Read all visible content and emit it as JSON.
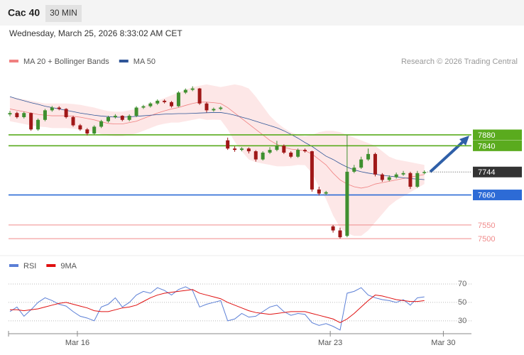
{
  "header": {
    "title": "Cac 40",
    "interval": "30 MIN",
    "timestamp": "Wednesday, March 25, 2026 8:33:02 AM CET"
  },
  "chart_data": [
    {
      "type": "candlestick",
      "legend": [
        {
          "name": "MA 20 + Bollinger Bands",
          "color": "#f08080"
        },
        {
          "name": "MA 50",
          "color": "#2f5597"
        }
      ],
      "credit": "Research © 2026 Trading Central",
      "up_color": "#3f8f2f",
      "down_color": "#a01818",
      "xlim": [
        -0.2,
        65.7
      ],
      "xticks": [
        {
          "value": 9.6,
          "label": "Mar 16"
        },
        {
          "value": 45.6,
          "label": "Mar 23"
        },
        {
          "value": 61.7,
          "label": "Mar 30"
        }
      ],
      "ylim": [
        7443,
        8127
      ],
      "candles": [
        [
          7955,
          7968,
          7948,
          7960
        ],
        [
          7960,
          7965,
          7940,
          7945
        ],
        [
          7945,
          7965,
          7940,
          7960
        ],
        [
          7960,
          7962,
          7895,
          7900
        ],
        [
          7900,
          7940,
          7895,
          7935
        ],
        [
          7935,
          7975,
          7930,
          7970
        ],
        [
          7970,
          7986,
          7965,
          7980
        ],
        [
          7980,
          7985,
          7970,
          7975
        ],
        [
          7975,
          7978,
          7940,
          7945
        ],
        [
          7945,
          7950,
          7910,
          7915
        ],
        [
          7915,
          7920,
          7895,
          7900
        ],
        [
          7900,
          7905,
          7878,
          7885
        ],
        [
          7885,
          7915,
          7880,
          7910
        ],
        [
          7910,
          7935,
          7905,
          7930
        ],
        [
          7930,
          7950,
          7925,
          7945
        ],
        [
          7945,
          7956,
          7940,
          7950
        ],
        [
          7950,
          7952,
          7930,
          7935
        ],
        [
          7935,
          7955,
          7930,
          7950
        ],
        [
          7950,
          7985,
          7945,
          7980
        ],
        [
          7980,
          7990,
          7975,
          7985
        ],
        [
          7985,
          8000,
          7980,
          7995
        ],
        [
          7995,
          8010,
          7990,
          8005
        ],
        [
          8005,
          8010,
          7995,
          8000
        ],
        [
          8000,
          8004,
          7980,
          7985
        ],
        [
          7985,
          8040,
          7982,
          8035
        ],
        [
          8035,
          8050,
          8030,
          8045
        ],
        [
          8045,
          8058,
          8040,
          8050
        ],
        [
          8050,
          8052,
          7990,
          7995
        ],
        [
          7995,
          8000,
          7962,
          7970
        ],
        [
          7970,
          7980,
          7965,
          7975
        ],
        [
          7975,
          7985,
          7970,
          7980
        ],
        [
          7860,
          7870,
          7825,
          7830
        ],
        [
          7830,
          7838,
          7818,
          7825
        ],
        [
          7825,
          7835,
          7820,
          7830
        ],
        [
          7830,
          7834,
          7812,
          7820
        ],
        [
          7820,
          7824,
          7782,
          7790
        ],
        [
          7790,
          7820,
          7786,
          7815
        ],
        [
          7815,
          7835,
          7810,
          7825
        ],
        [
          7825,
          7858,
          7820,
          7840
        ],
        [
          7840,
          7845,
          7810,
          7815
        ],
        [
          7815,
          7820,
          7795,
          7800
        ],
        [
          7800,
          7830,
          7796,
          7825
        ],
        [
          7825,
          7830,
          7815,
          7820
        ],
        [
          7820,
          7822,
          7672,
          7680
        ],
        [
          7680,
          7690,
          7658,
          7665
        ],
        [
          7665,
          7675,
          7660,
          7670
        ],
        [
          7545,
          7550,
          7522,
          7530
        ],
        [
          7530,
          7540,
          7500,
          7505
        ],
        [
          7510,
          7880,
          7505,
          7745
        ],
        [
          7745,
          7770,
          7740,
          7760
        ],
        [
          7760,
          7800,
          7755,
          7790
        ],
        [
          7790,
          7830,
          7785,
          7810
        ],
        [
          7810,
          7815,
          7728,
          7735
        ],
        [
          7735,
          7740,
          7708,
          7715
        ],
        [
          7715,
          7732,
          7710,
          7725
        ],
        [
          7725,
          7742,
          7720,
          7735
        ],
        [
          7735,
          7748,
          7730,
          7740
        ],
        [
          7740,
          7745,
          7682,
          7690
        ],
        [
          7690,
          7748,
          7686,
          7740
        ],
        [
          7740,
          7750,
          7736,
          7744
        ]
      ],
      "ma20": [
        7975,
        7970,
        7965,
        7960,
        7955,
        7952,
        7950,
        7950,
        7950,
        7948,
        7945,
        7940,
        7935,
        7928,
        7922,
        7920,
        7920,
        7925,
        7930,
        7940,
        7950,
        7960,
        7968,
        7975,
        7980,
        7988,
        7995,
        8000,
        8000,
        7998,
        7995,
        7980,
        7960,
        7940,
        7920,
        7900,
        7880,
        7860,
        7845,
        7835,
        7828,
        7825,
        7822,
        7810,
        7790,
        7770,
        7740,
        7715,
        7700,
        7690,
        7685,
        7690,
        7700,
        7705,
        7710,
        7715,
        7720,
        7725,
        7730,
        7735
      ],
      "bb_upper": [
        8020,
        8015,
        8010,
        8005,
        8000,
        7995,
        7995,
        7995,
        7995,
        7993,
        7990,
        7985,
        7980,
        7973,
        7967,
        7965,
        7965,
        7970,
        7975,
        7985,
        7995,
        8005,
        8015,
        8025,
        8035,
        8045,
        8055,
        8060,
        8065,
        8060,
        8055,
        8060,
        8065,
        8060,
        8050,
        8020,
        7985,
        7950,
        7925,
        7905,
        7890,
        7880,
        7875,
        7880,
        7890,
        7895,
        7895,
        7890,
        7880,
        7870,
        7860,
        7850,
        7840,
        7820,
        7800,
        7790,
        7785,
        7780,
        7775,
        7770
      ],
      "bb_lower": [
        7930,
        7925,
        7920,
        7915,
        7910,
        7909,
        7905,
        7905,
        7905,
        7903,
        7900,
        7895,
        7890,
        7883,
        7877,
        7875,
        7875,
        7880,
        7885,
        7895,
        7905,
        7915,
        7921,
        7925,
        7925,
        7930,
        7935,
        7940,
        7935,
        7936,
        7935,
        7900,
        7855,
        7820,
        7790,
        7780,
        7775,
        7770,
        7765,
        7765,
        7766,
        7770,
        7769,
        7740,
        7690,
        7645,
        7585,
        7540,
        7520,
        7510,
        7510,
        7530,
        7560,
        7590,
        7620,
        7640,
        7655,
        7670,
        7685,
        7700
      ],
      "ma50": [
        8020,
        8012,
        8005,
        7998,
        7992,
        7985,
        7980,
        7975,
        7970,
        7965,
        7960,
        7956,
        7952,
        7949,
        7947,
        7945,
        7945,
        7946,
        7948,
        7950,
        7952,
        7954,
        7956,
        7957,
        7958,
        7958,
        7959,
        7960,
        7961,
        7962,
        7962,
        7958,
        7952,
        7945,
        7938,
        7930,
        7922,
        7914,
        7906,
        7895,
        7882,
        7868,
        7852,
        7838,
        7820,
        7802,
        7790,
        7775,
        7762,
        7752,
        7745,
        7740,
        7736,
        7732,
        7729,
        7726,
        7723,
        7720,
        7718,
        7716
      ],
      "levels": [
        {
          "value": 7880,
          "color": "#5aab1e",
          "boxed": true
        },
        {
          "value": 7840,
          "color": "#5aab1e",
          "boxed": true
        },
        {
          "value": 7744,
          "color": "#333333",
          "boxed": true,
          "dotted": true
        },
        {
          "value": 7660,
          "color": "#2d6bd6",
          "boxed": true
        },
        {
          "value": 7550,
          "color": "#f08a8a",
          "boxed": false
        },
        {
          "value": 7500,
          "color": "#f08a8a",
          "boxed": false
        }
      ]
    },
    {
      "type": "line",
      "series": [
        {
          "name": "RSI",
          "color": "#5b7fd6",
          "values": [
            40,
            45,
            35,
            42,
            50,
            55,
            52,
            48,
            46,
            40,
            35,
            33,
            30,
            45,
            48,
            55,
            45,
            50,
            58,
            62,
            60,
            66,
            63,
            58,
            64,
            67,
            63,
            45,
            48,
            50,
            52,
            30,
            32,
            38,
            34,
            35,
            40,
            45,
            47,
            40,
            36,
            38,
            37,
            28,
            25,
            27,
            24,
            20,
            60,
            62,
            66,
            58,
            55,
            53,
            52,
            50,
            53,
            47,
            55,
            56
          ]
        },
        {
          "name": "9MA",
          "color": "#e01010",
          "values": [
            42,
            42,
            41,
            42,
            43,
            45,
            47,
            49,
            50,
            48,
            46,
            44,
            41,
            40,
            40,
            42,
            44,
            45,
            47,
            51,
            55,
            58,
            60,
            61,
            62,
            63,
            64,
            60,
            58,
            56,
            54,
            50,
            47,
            44,
            41,
            39,
            38,
            37,
            38,
            39,
            40,
            40,
            40,
            38,
            36,
            34,
            32,
            28,
            32,
            38,
            45,
            52,
            58,
            57,
            55,
            53,
            52,
            51,
            51,
            52
          ]
        }
      ],
      "ylim": [
        16,
        97
      ],
      "yticks": [
        70,
        50,
        30
      ],
      "grid": true
    }
  ]
}
